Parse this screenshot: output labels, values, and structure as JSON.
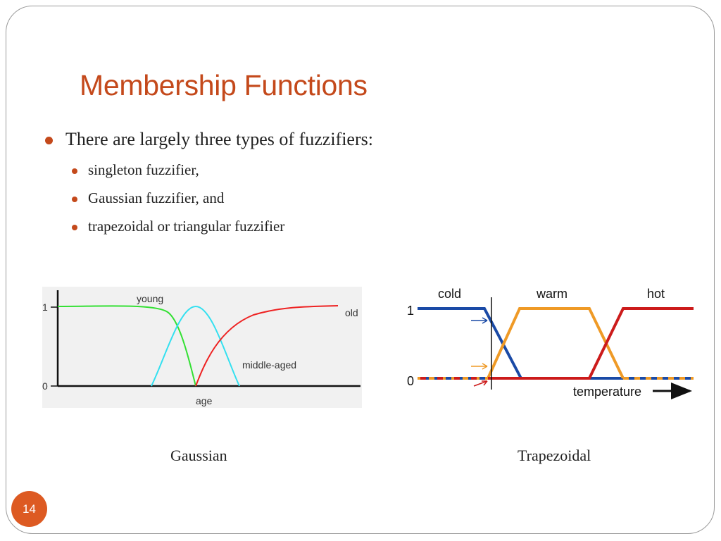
{
  "slide": {
    "title": "Membership Functions",
    "bullet": "There are largely three types of fuzzifiers:",
    "sub_bullets": [
      "singleton fuzzifier,",
      "Gaussian fuzzifier, and",
      "trapezoidal or triangular fuzzifier"
    ],
    "captions": {
      "left": "Gaussian",
      "right": "Trapezoidal"
    },
    "page_number": "14"
  },
  "colors": {
    "accent": "#c4491b",
    "badge": "#dd5a22"
  },
  "chart_data": [
    {
      "type": "line",
      "title": "",
      "xlabel": "age",
      "ylabel": "",
      "y_ticks": [
        "0",
        "1"
      ],
      "ylim": [
        0,
        1
      ],
      "series": [
        {
          "name": "young",
          "color": "#33e033"
        },
        {
          "name": "middle-aged",
          "color": "#33e0f0"
        },
        {
          "name": "old",
          "color": "#ee2222"
        }
      ]
    },
    {
      "type": "line",
      "title": "",
      "xlabel": "temperature",
      "ylabel": "",
      "y_ticks": [
        "0",
        "1"
      ],
      "ylim": [
        0,
        1
      ],
      "series": [
        {
          "name": "cold",
          "color": "#1a4aa6"
        },
        {
          "name": "warm",
          "color": "#ef9a26"
        },
        {
          "name": "hot",
          "color": "#cc1b1b"
        }
      ]
    }
  ]
}
